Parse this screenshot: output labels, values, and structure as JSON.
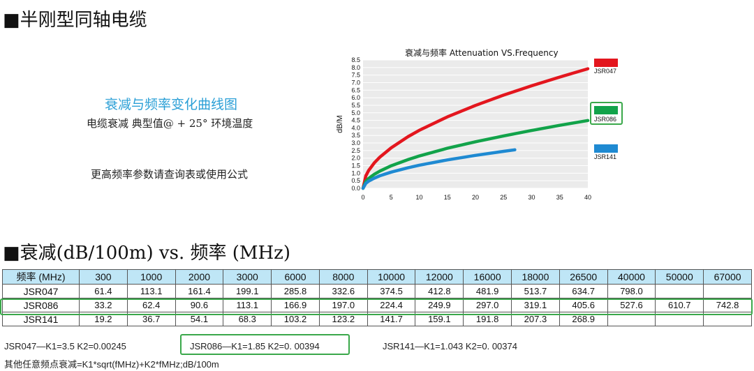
{
  "top_section": {
    "title": "■半刚型同轴电缆"
  },
  "chart_desc": {
    "heading": "衰减与频率变化曲线图",
    "line1": "电缆衰减 典型值@ + 25° 环境温度",
    "line2": "更高频率参数请查询表或使用公式"
  },
  "chart_data": {
    "type": "line",
    "title": "衰减与频率 Attenuation VS.Frequency",
    "xlabel": "",
    "ylabel": "dB/M",
    "xlim": [
      0,
      40
    ],
    "ylim": [
      0,
      8.5
    ],
    "x_ticks": [
      "0",
      "5",
      "10",
      "15",
      "20",
      "25",
      "30",
      "35",
      "40"
    ],
    "y_ticks": [
      "0.0",
      "0.5",
      "1.0",
      "1.5",
      "2.0",
      "2.5",
      "3.0",
      "3.5",
      "4.0",
      "4.5",
      "5.0",
      "5.5",
      "6.0",
      "6.5",
      "7.0",
      "7.5",
      "8.0",
      "8.5"
    ],
    "grid": true,
    "legend_position": "right",
    "series": [
      {
        "name": "JSR047",
        "color": "#e3161e",
        "x": [
          0,
          0.5,
          1,
          2,
          3,
          5,
          8,
          10,
          15,
          20,
          25,
          30,
          35,
          40
        ],
        "y": [
          0,
          0.82,
          1.18,
          1.68,
          2.07,
          2.68,
          3.42,
          3.84,
          4.73,
          5.49,
          6.17,
          6.79,
          7.37,
          7.92
        ]
      },
      {
        "name": "JSR086",
        "color": "#12a34a",
        "x": [
          0,
          0.5,
          1,
          2,
          3,
          5,
          8,
          10,
          15,
          20,
          25,
          30,
          35,
          40
        ],
        "y": [
          0,
          0.45,
          0.65,
          0.93,
          1.14,
          1.49,
          1.9,
          2.14,
          2.65,
          3.08,
          3.47,
          3.83,
          4.17,
          4.49
        ]
      },
      {
        "name": "JSR141",
        "color": "#1f8ad2",
        "x": [
          0,
          0.5,
          1,
          2,
          3,
          5,
          8,
          10,
          15,
          20,
          25,
          27
        ],
        "y": [
          0,
          0.33,
          0.47,
          0.67,
          0.83,
          1.07,
          1.36,
          1.53,
          1.88,
          2.18,
          2.45,
          2.55
        ]
      }
    ]
  },
  "table_section": {
    "title": "■衰减(dB/100m) vs. 频率 (MHz)"
  },
  "table": {
    "header_label": "频率 (MHz)",
    "frequencies": [
      "300",
      "1000",
      "2000",
      "3000",
      "6000",
      "8000",
      "10000",
      "12000",
      "16000",
      "18000",
      "26500",
      "40000",
      "50000",
      "67000"
    ],
    "rows": [
      {
        "label": "JSR047",
        "values": [
          "61.4",
          "113.1",
          "161.4",
          "199.1",
          "285.8",
          "332.6",
          "374.5",
          "412.8",
          "481.9",
          "513.7",
          "634.7",
          "798.0",
          "",
          ""
        ]
      },
      {
        "label": "JSR086",
        "values": [
          "33.2",
          "62.4",
          "90.6",
          "113.1",
          "166.9",
          "197.0",
          "224.4",
          "249.9",
          "297.0",
          "319.1",
          "405.6",
          "527.6",
          "610.7",
          "742.8"
        ]
      },
      {
        "label": "JSR141",
        "values": [
          "19.2",
          "36.7",
          "54.1",
          "68.3",
          "103.2",
          "123.2",
          "141.7",
          "159.1",
          "191.8",
          "207.3",
          "268.9",
          "",
          "",
          ""
        ]
      }
    ]
  },
  "formulas": {
    "jsr047": "JSR047—K1=3.5 K2=0.00245",
    "jsr086": "JSR086—K1=1.85 K2=0. 00394",
    "jsr141": "JSR141—K1=1.043 K2=0. 00374",
    "general": "其他任意频点衰减=K1*sqrt(fMHz)+K2*fMHz;dB/100m"
  },
  "colors": {
    "table_header_bg": "#bfe6f6",
    "highlight": "#3aa84a"
  }
}
